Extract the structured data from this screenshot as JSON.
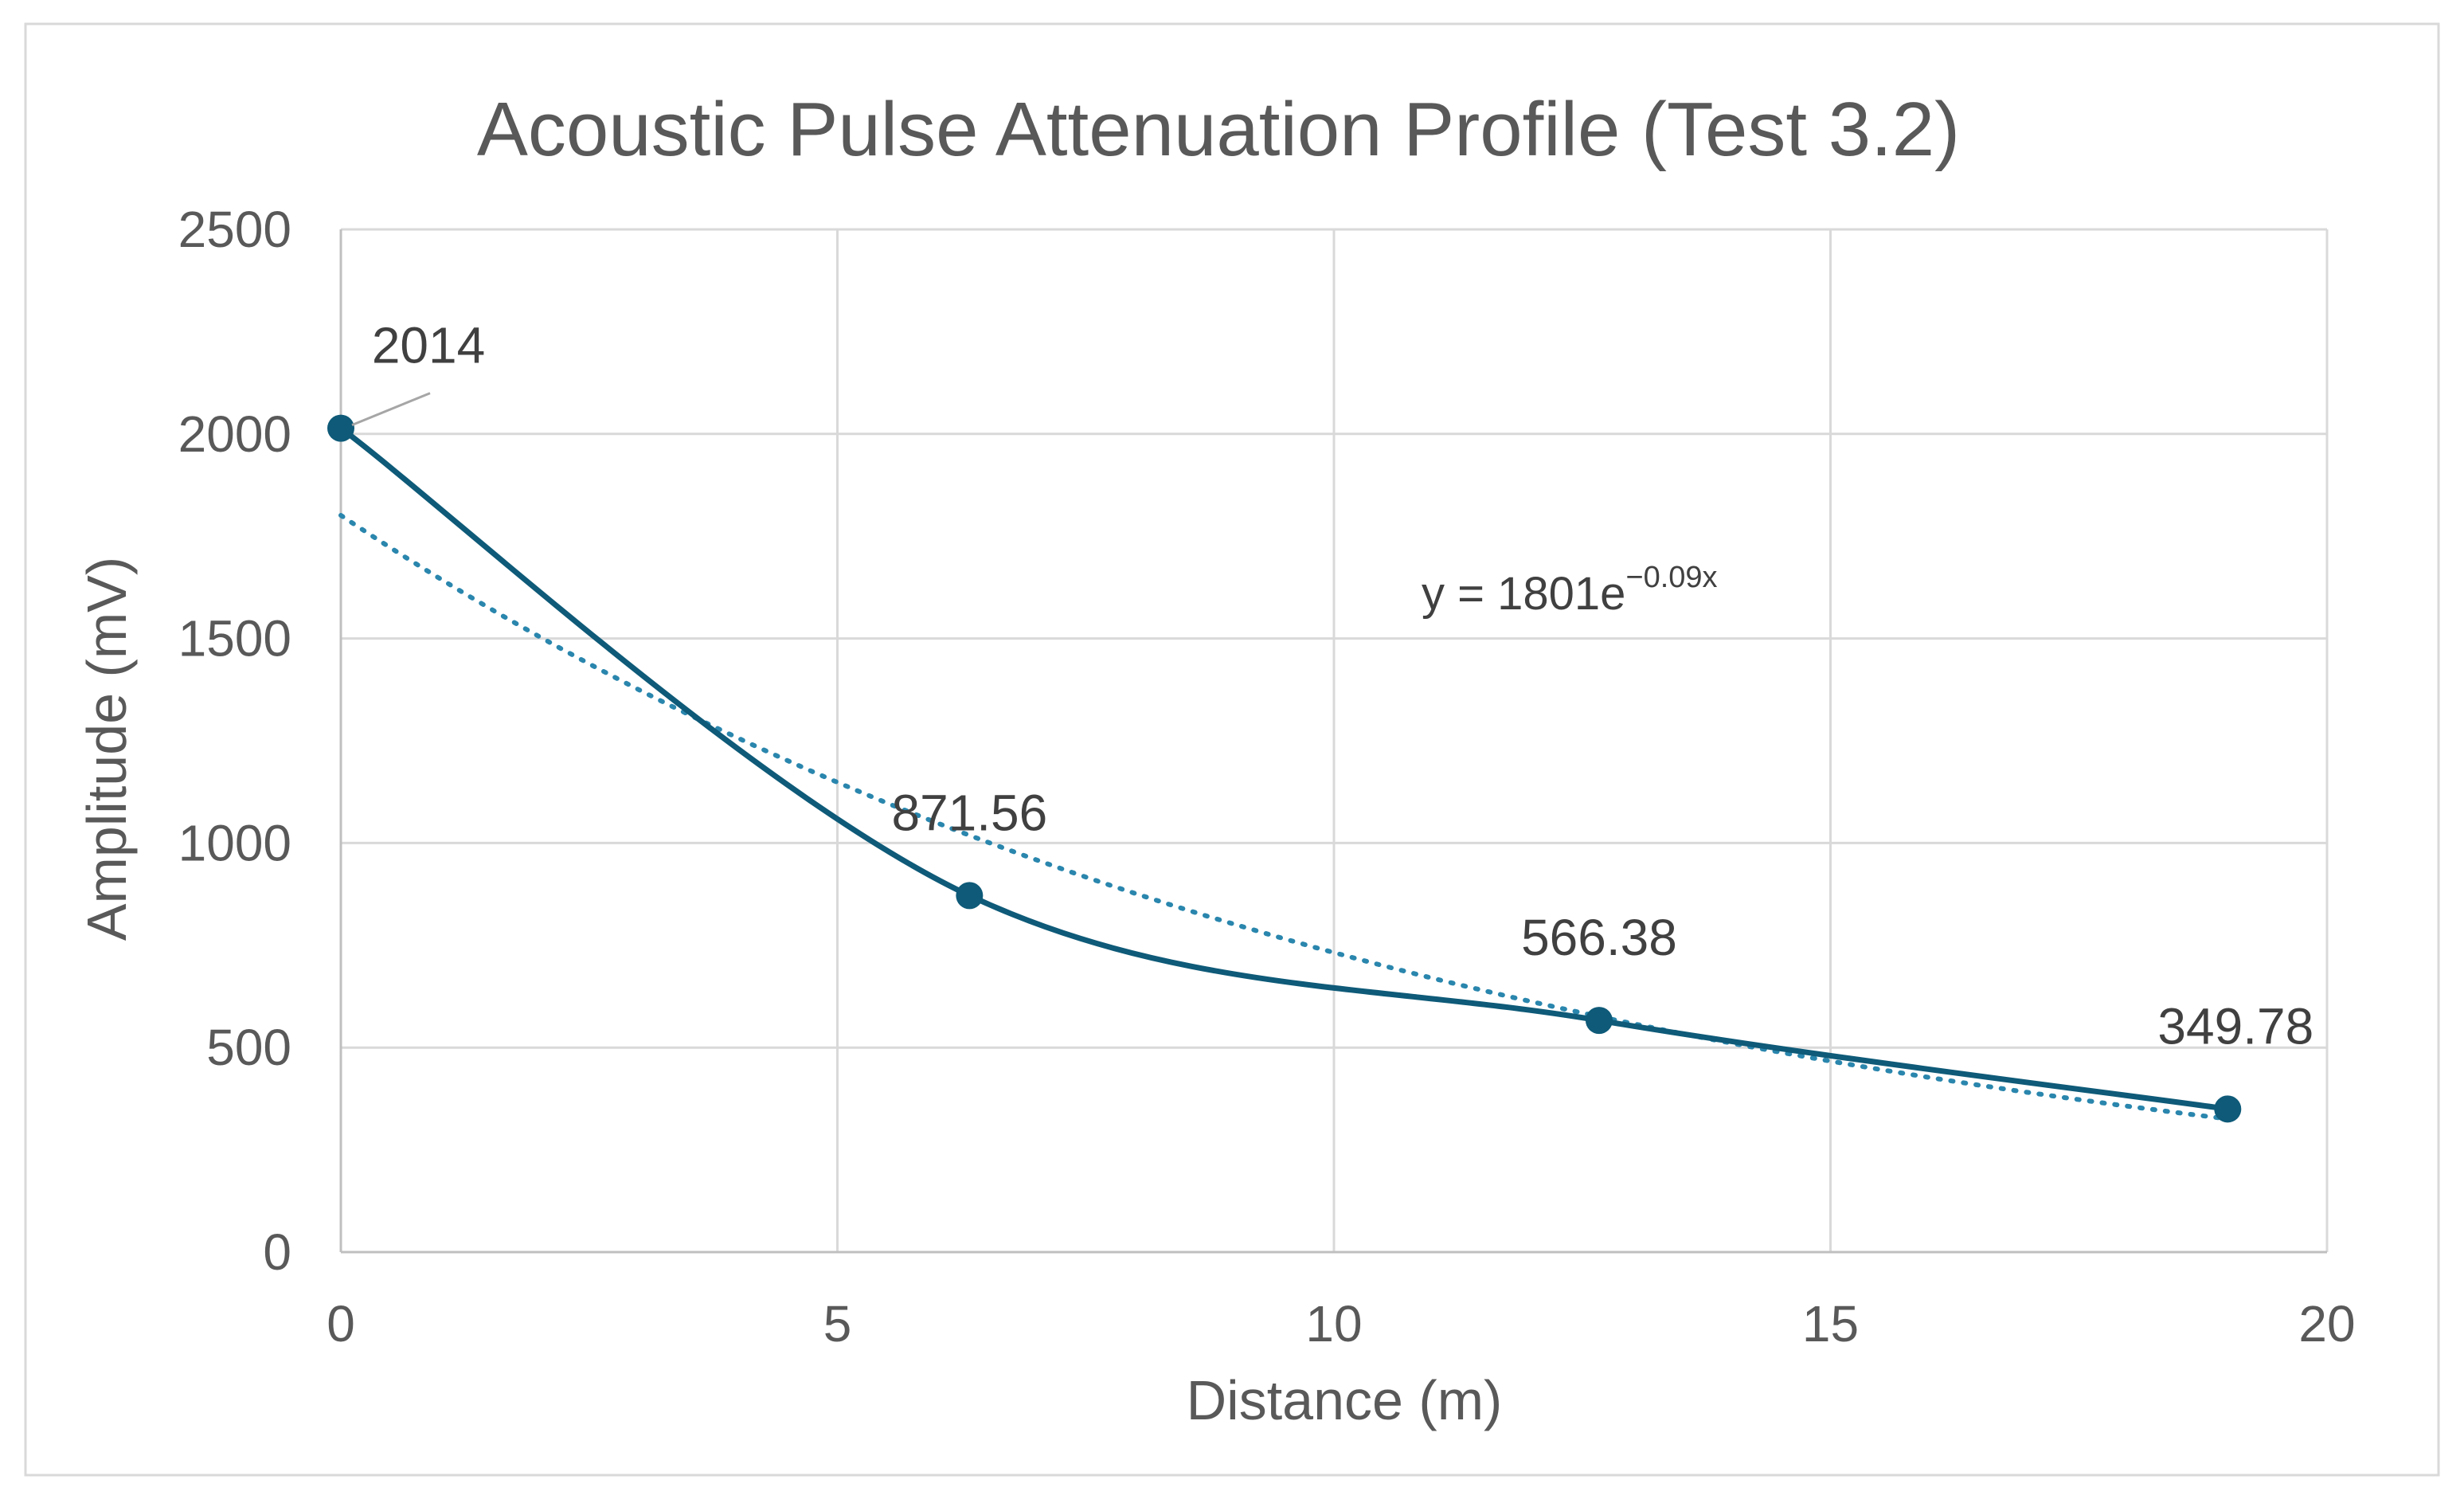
{
  "colors": {
    "series": "#0e5a78",
    "trendline": "#2a86ad",
    "grid": "#d9d9d9",
    "text": "#595959",
    "label_text": "#404040",
    "frame": "#d9d9d9",
    "leader": "#a6a6a6"
  },
  "chart_data": {
    "type": "scatter",
    "title": "Acoustic Pulse Attenuation Profile (Test 3.2)",
    "xlabel": "Distance (m)",
    "ylabel": "Amplitude (mV)",
    "xlim": [
      0,
      20
    ],
    "ylim": [
      0,
      2500
    ],
    "x_ticks": [
      0,
      5,
      10,
      15,
      20
    ],
    "y_ticks": [
      0,
      500,
      1000,
      1500,
      2000,
      2500
    ],
    "grid": true,
    "line_style": "smoothed",
    "series": [
      {
        "name": "Amplitude",
        "points": [
          {
            "x": 0,
            "y": 2014,
            "label": "2014"
          },
          {
            "x": 6.33,
            "y": 871.56,
            "label": "871.56"
          },
          {
            "x": 12.67,
            "y": 566.38,
            "label": "566.38"
          },
          {
            "x": 19,
            "y": 349.78,
            "label": "349.78"
          }
        ]
      }
    ],
    "trendline": {
      "type": "exponential",
      "a": 1801,
      "b": -0.09,
      "x_range": [
        0,
        19
      ],
      "equation_base": "y = 1801e",
      "equation_exponent": "−0.09x"
    }
  }
}
